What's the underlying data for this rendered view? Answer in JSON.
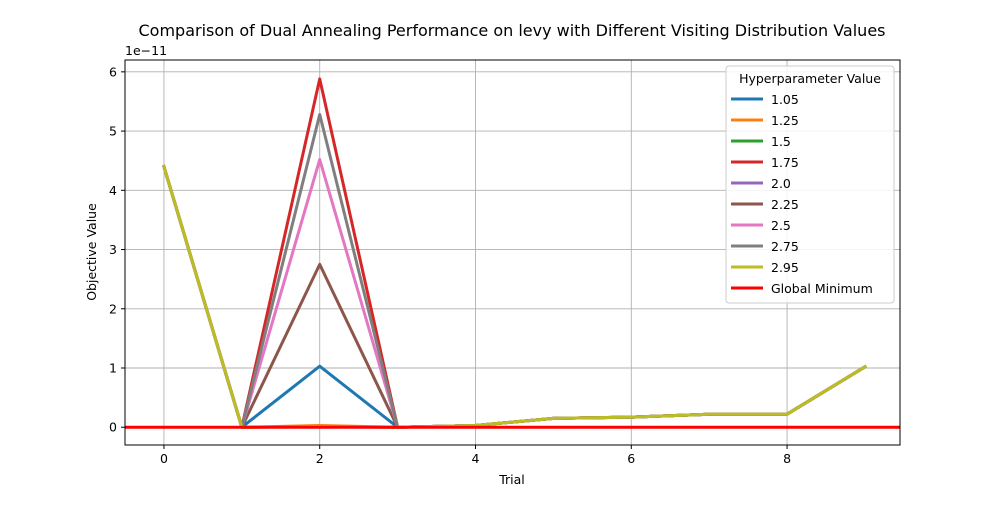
{
  "chart_data": {
    "type": "line",
    "title": "Comparison of Dual Annealing Performance on levy with Different Visiting Distribution Values",
    "xlabel": "Trial",
    "ylabel": "Objective Value",
    "y_multiplier_label": "1e−11",
    "x_ticks": [
      "0",
      "2",
      "4",
      "6",
      "8"
    ],
    "y_ticks": [
      "0",
      "1",
      "2",
      "3",
      "4",
      "5",
      "6"
    ],
    "xlim": [
      -0.5,
      9.45
    ],
    "ylim": [
      -3e-12,
      6.2e-11
    ],
    "grid": true,
    "legend": {
      "title": "Hyperparameter Value",
      "placement": "top-right"
    },
    "x": [
      0,
      1,
      2,
      3,
      4,
      5,
      6,
      7,
      8,
      9
    ],
    "series": [
      {
        "name": "1.05",
        "color": "#1f77b4",
        "values": [
          4.4e-11,
          0,
          1.03e-11,
          0,
          3e-13,
          1.5e-12,
          1.7e-12,
          2.2e-12,
          2.2e-12,
          1.02e-11
        ]
      },
      {
        "name": "1.25",
        "color": "#ff7f0e",
        "values": [
          4.4e-11,
          0,
          3e-13,
          0,
          3e-13,
          1.5e-12,
          1.7e-12,
          2.2e-12,
          2.2e-12,
          1.02e-11
        ]
      },
      {
        "name": "1.5",
        "color": "#2ca02c",
        "values": [
          4.4e-11,
          0,
          1e-13,
          0,
          3e-13,
          1.5e-12,
          1.7e-12,
          2.2e-12,
          2.2e-12,
          1.02e-11
        ]
      },
      {
        "name": "1.75",
        "color": "#d62728",
        "values": [
          4.4e-11,
          0,
          5.88e-11,
          0,
          3e-13,
          1.5e-12,
          1.7e-12,
          2.2e-12,
          2.2e-12,
          1.02e-11
        ]
      },
      {
        "name": "2.0",
        "color": "#9467bd",
        "values": [
          4.4e-11,
          0,
          1e-13,
          0,
          3e-13,
          1.5e-12,
          1.7e-12,
          2.2e-12,
          2.2e-12,
          1.02e-11
        ]
      },
      {
        "name": "2.25",
        "color": "#8c564b",
        "values": [
          4.4e-11,
          0,
          2.75e-11,
          0,
          3e-13,
          1.5e-12,
          1.7e-12,
          2.2e-12,
          2.2e-12,
          1.02e-11
        ]
      },
      {
        "name": "2.5",
        "color": "#e377c2",
        "values": [
          4.4e-11,
          0,
          4.52e-11,
          0,
          3e-13,
          1.5e-12,
          1.7e-12,
          2.2e-12,
          2.2e-12,
          1.02e-11
        ]
      },
      {
        "name": "2.75",
        "color": "#7f7f7f",
        "values": [
          4.4e-11,
          0,
          5.28e-11,
          0,
          3e-13,
          1.5e-12,
          1.7e-12,
          2.2e-12,
          2.2e-12,
          1.02e-11
        ]
      },
      {
        "name": "2.95",
        "color": "#bcbd22",
        "values": [
          4.4e-11,
          0,
          1e-13,
          0,
          3e-13,
          1.5e-12,
          1.7e-12,
          2.2e-12,
          2.2e-12,
          1.02e-11
        ]
      }
    ],
    "global_minimum": {
      "name": "Global Minimum",
      "color": "#ff0000",
      "value": 0
    }
  }
}
